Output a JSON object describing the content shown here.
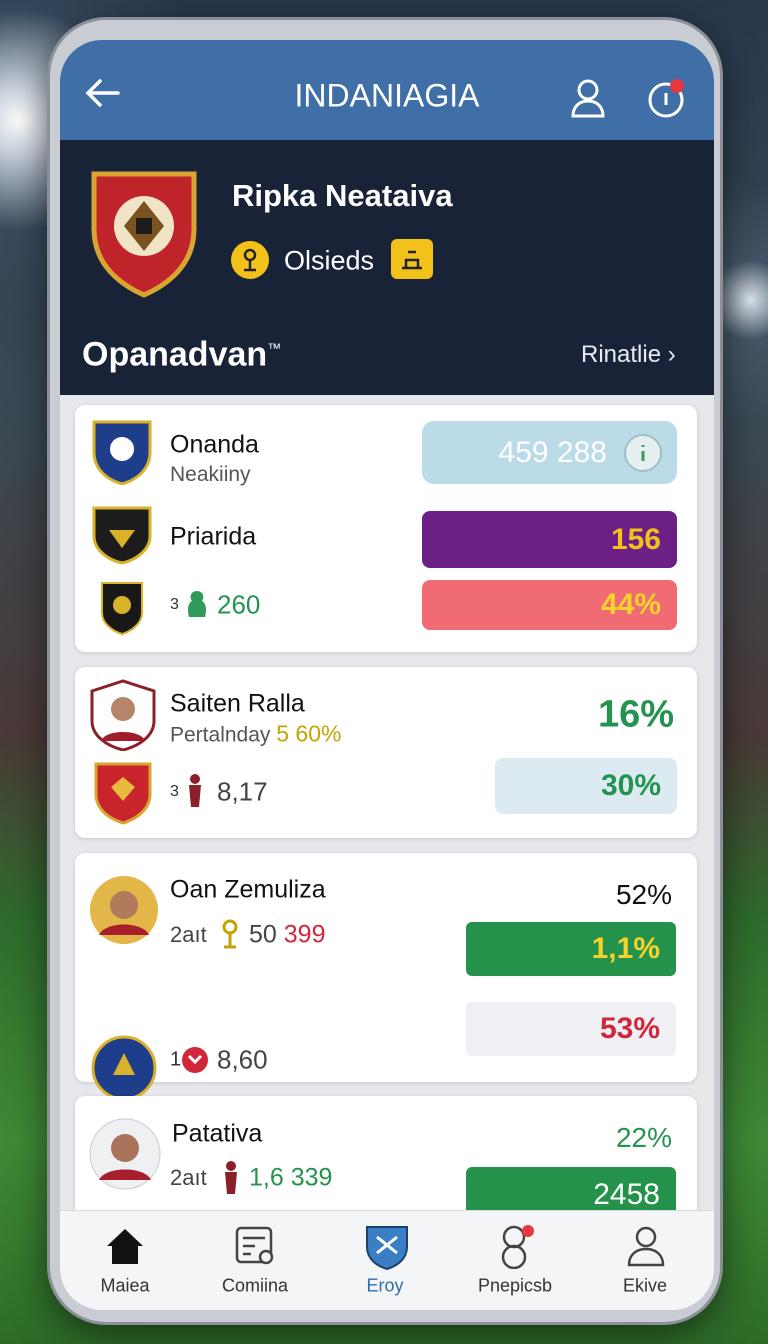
{
  "app_bar": {
    "title": "INDANIAGIA"
  },
  "team": {
    "name": "Ripka Neataiva",
    "badge_label": "Olsieds"
  },
  "section": {
    "title": "Opanadvan",
    "title_mark": "™",
    "link": "Rinatlie"
  },
  "cards": [
    {
      "rows": [
        {
          "name": "Onanda",
          "sub": "Neakiiny",
          "bar": "459 288"
        },
        {
          "name": "Priarida",
          "bar": "156"
        },
        {
          "prefix": "3",
          "stat": "260",
          "bar": "44%"
        }
      ]
    },
    {
      "name": "Saiten Ralla",
      "sub": "Pertalnday",
      "sub_value": "5 60%",
      "top_value": "16%",
      "prefix": "3",
      "stat": "8,17",
      "bar": "30%"
    },
    {
      "name": "Oan Zemuliza",
      "sub": "2aıt",
      "sub_value": "50",
      "sub_value2": "399",
      "top_value": "52%",
      "bar1": "1,1%",
      "prefix": "1",
      "stat": "8,60",
      "bar2": "53%"
    },
    {
      "name": "Patativa",
      "sub": "2aıt",
      "sub_value": "1,6 339",
      "top_value": "22%",
      "bar": "2458"
    }
  ],
  "nav": [
    {
      "label": "Maiea"
    },
    {
      "label": "Comiina"
    },
    {
      "label": "Eroy"
    },
    {
      "label": "Pnepicsb"
    },
    {
      "label": "Ekive"
    }
  ]
}
